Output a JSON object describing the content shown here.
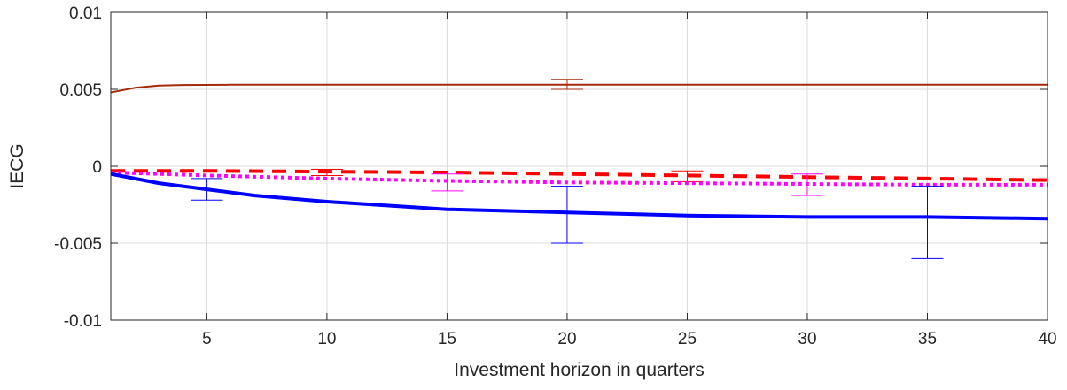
{
  "chart_data": {
    "type": "line",
    "xlabel": "Investment horizon in quarters",
    "ylabel": "IECG",
    "xlim": [
      1,
      40
    ],
    "ylim": [
      -0.01,
      0.01
    ],
    "grid": true,
    "x_ticks": [
      5,
      10,
      15,
      20,
      25,
      30,
      35,
      40
    ],
    "x_tick_labels": [
      "5",
      "10",
      "15",
      "20",
      "25",
      "30",
      "35",
      "40"
    ],
    "y_ticks": [
      0.01,
      0.005,
      0,
      -0.005,
      -0.01
    ],
    "y_tick_labels": [
      "0.01",
      "0.005",
      "0",
      "-0.005",
      "-0.01"
    ],
    "series": [
      {
        "style": "solid",
        "color": "#a52a0a",
        "x": [
          1,
          2,
          3,
          4,
          6,
          10,
          20,
          30,
          40
        ],
        "y": [
          0.0048,
          0.0051,
          0.00525,
          0.00528,
          0.0053,
          0.0053,
          0.0053,
          0.0053,
          0.0053
        ],
        "error_bars": [
          {
            "x": 20,
            "low": 0.005,
            "high": 0.00565
          }
        ]
      },
      {
        "style": "dashed",
        "color": "#ff0000",
        "x": [
          1,
          5,
          10,
          15,
          20,
          25,
          30,
          35,
          40
        ],
        "y": [
          -0.0003,
          -0.0003,
          -0.00035,
          -0.0004,
          -0.0005,
          -0.0006,
          -0.0007,
          -0.0008,
          -0.0009
        ],
        "error_bars": [
          {
            "x": 10,
            "low": -0.0006,
            "high": -0.0002
          },
          {
            "x": 25,
            "low": -0.001,
            "high": -0.0003
          }
        ]
      },
      {
        "style": "dotted",
        "color": "#ff00ff",
        "x": [
          1,
          5,
          10,
          15,
          20,
          25,
          30,
          35,
          40
        ],
        "y": [
          -0.0004,
          -0.0006,
          -0.0008,
          -0.00095,
          -0.00105,
          -0.0011,
          -0.00115,
          -0.0012,
          -0.0012
        ],
        "error_bars": [
          {
            "x": 15,
            "low": -0.0016,
            "high": -0.0005
          },
          {
            "x": 30,
            "low": -0.0019,
            "high": -0.0005
          }
        ]
      },
      {
        "style": "solid-thick",
        "color": "#0000ff",
        "x": [
          1,
          2,
          3,
          5,
          7,
          10,
          13,
          15,
          20,
          25,
          30,
          35,
          40
        ],
        "y": [
          -0.0005,
          -0.0008,
          -0.0011,
          -0.0015,
          -0.0019,
          -0.0023,
          -0.0026,
          -0.0028,
          -0.003,
          -0.0032,
          -0.0033,
          -0.0033,
          -0.0034
        ],
        "error_bars": [
          {
            "x": 5,
            "low": -0.0022,
            "high": -0.0008
          },
          {
            "x": 20,
            "low": -0.005,
            "high": -0.0013
          },
          {
            "x": 35,
            "low": -0.006,
            "high": -0.0013
          }
        ]
      }
    ]
  }
}
